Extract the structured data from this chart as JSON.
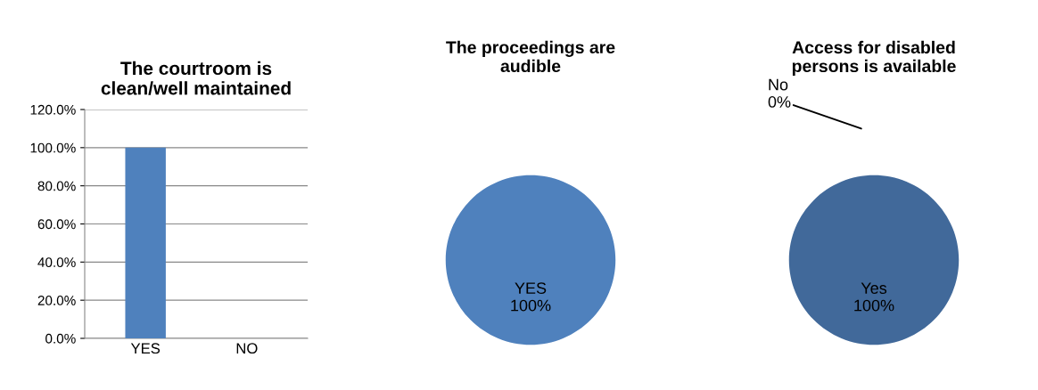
{
  "chart_data": [
    {
      "type": "bar",
      "title": "The courtroom is\nclean/well maintained",
      "categories": [
        "YES",
        "NO"
      ],
      "values": [
        100,
        0
      ],
      "color": "#4f81bd",
      "ylim": [
        0,
        120
      ],
      "yticks": [
        {
          "value": 0,
          "label": "0.0%"
        },
        {
          "value": 20,
          "label": "20.0%"
        },
        {
          "value": 40,
          "label": "40.0%"
        },
        {
          "value": 60,
          "label": "60.0%"
        },
        {
          "value": 80,
          "label": "80.0%"
        },
        {
          "value": 100,
          "label": "100.0%"
        },
        {
          "value": 120,
          "label": "120.0%"
        }
      ],
      "grid": "y"
    },
    {
      "type": "pie",
      "title": "The proceedings are\naudible",
      "categories": [
        "YES"
      ],
      "values": [
        100
      ],
      "colors": [
        "#4f81bd"
      ],
      "value_labels": [
        "100%"
      ]
    },
    {
      "type": "pie",
      "title": "Access for disabled\npersons is available",
      "categories": [
        "No",
        "Yes"
      ],
      "values": [
        0,
        100
      ],
      "colors": [
        "#3c6494",
        "#41699a"
      ],
      "value_labels": [
        "0%",
        "100%"
      ]
    }
  ]
}
